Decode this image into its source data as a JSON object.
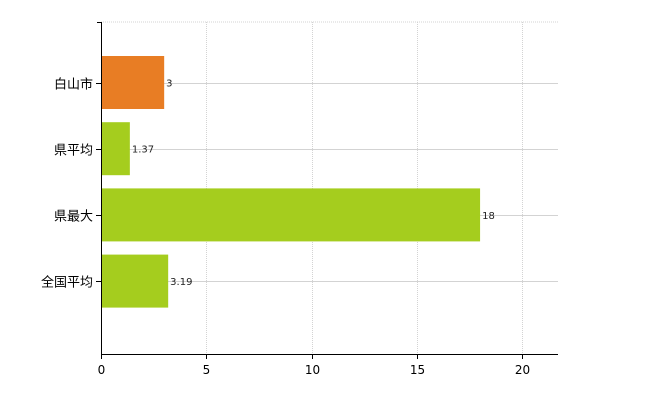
{
  "chart_data": {
    "type": "bar",
    "orientation": "horizontal",
    "categories": [
      "白山市",
      "県平均",
      "県最大",
      "全国平均"
    ],
    "values": [
      3,
      1.37,
      18,
      3.19
    ],
    "value_labels": [
      "3",
      "1.37",
      "18",
      "3.19"
    ],
    "colors": [
      "#e87d24",
      "#a5cd1e",
      "#a5cd1e",
      "#a5cd1e"
    ],
    "xlim": [
      0,
      21.7
    ],
    "xticks": [
      0,
      5,
      10,
      15,
      20
    ],
    "xtick_labels": [
      "0",
      "5",
      "10",
      "15",
      "20"
    ],
    "grid": true,
    "legend": "none",
    "title": "",
    "xlabel": "",
    "ylabel": ""
  }
}
